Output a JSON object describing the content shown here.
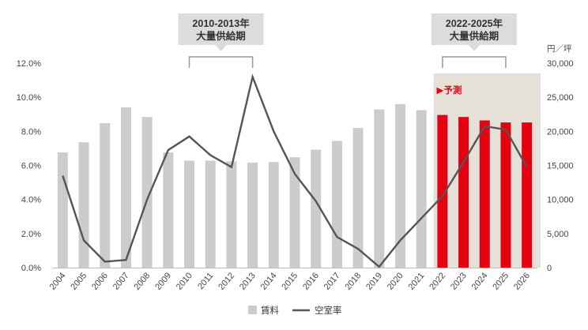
{
  "chart_data": {
    "type": "bar",
    "categories": [
      "2004",
      "2005",
      "2006",
      "2007",
      "2008",
      "2009",
      "2010",
      "2011",
      "2012",
      "2013",
      "2014",
      "2015",
      "2016",
      "2017",
      "2018",
      "2019",
      "2020",
      "2021",
      "2022",
      "2023",
      "2024",
      "2025",
      "2026"
    ],
    "series": [
      {
        "name": "賃料",
        "type": "bar",
        "axis": "right",
        "values": [
          16900,
          18400,
          21200,
          23500,
          22100,
          16900,
          15700,
          15700,
          15600,
          15400,
          15500,
          16200,
          17300,
          18600,
          20500,
          23200,
          24000,
          23100,
          22400,
          22100,
          21600,
          21300,
          21300
        ],
        "forecast_from": "2022",
        "color": "#cccccc",
        "forecast_color": "#e50012"
      },
      {
        "name": "空室率",
        "type": "line",
        "axis": "left",
        "values": [
          5.4,
          1.6,
          0.35,
          0.45,
          4.0,
          6.9,
          7.7,
          6.6,
          5.9,
          11.2,
          8.0,
          5.5,
          3.9,
          1.8,
          1.1,
          0.05,
          1.6,
          2.9,
          4.2,
          6.2,
          8.3,
          8.1,
          5.9
        ],
        "color": "#555555"
      }
    ],
    "y_left": {
      "ticks": [
        "0.0%",
        "2.0%",
        "4.0%",
        "6.0%",
        "8.0%",
        "10.0%",
        "12.0%"
      ],
      "ylim": [
        0,
        12
      ]
    },
    "y_right": {
      "unit_label": "円／坪",
      "ticks": [
        "0",
        "5,000",
        "10,000",
        "15,000",
        "20,000",
        "25,000",
        "30,000"
      ],
      "ylim": [
        0,
        30000
      ]
    },
    "annotations": [
      {
        "line1": "2010-2013年",
        "line2": "大量供給期",
        "from": "2010",
        "to": "2013"
      },
      {
        "line1": "2022-2025年",
        "line2": "大量供給期",
        "from": "2022",
        "to": "2025"
      }
    ],
    "forecast": {
      "label": "予測",
      "marker": "▶",
      "from": "2022",
      "to": "2026",
      "shade_color": "#e6e1d8"
    },
    "legend": {
      "position": "bottom",
      "items": [
        {
          "label": "賃料",
          "kind": "bar",
          "color": "#cccccc"
        },
        {
          "label": "空室率",
          "kind": "line",
          "color": "#555555"
        }
      ]
    }
  }
}
